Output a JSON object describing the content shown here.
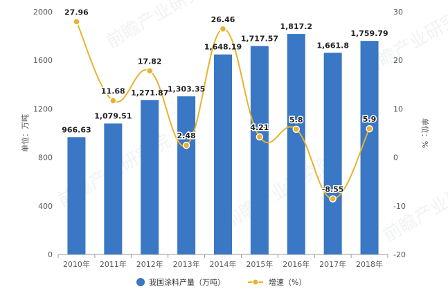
{
  "chart_data": {
    "type": "bar",
    "categories": [
      "2010年",
      "2011年",
      "2012年",
      "2013年",
      "2014年",
      "2015年",
      "2016年",
      "2017年",
      "2018年"
    ],
    "series": [
      {
        "name": "我国涂料产量（万吨）",
        "type": "bar",
        "axis": "left",
        "color": "#3a77c4",
        "values": [
          966.63,
          1079.51,
          1271.87,
          1303.35,
          1648.19,
          1717.57,
          1817.2,
          1661.8,
          1759.79
        ],
        "labels": [
          "966.63",
          "1,079.51",
          "1,271.87",
          "1,303.35",
          "1,648.19",
          "1,717.57",
          "1,817.2",
          "1,661.8",
          "1,759.79"
        ]
      },
      {
        "name": "增速（%）",
        "type": "line",
        "axis": "right",
        "smooth": true,
        "color": "#e8b32b",
        "values": [
          27.96,
          11.68,
          17.82,
          2.48,
          26.46,
          4.21,
          5.8,
          -8.55,
          5.9
        ],
        "labels": [
          "27.96",
          "11.68",
          "17.82",
          "2.48",
          "26.46",
          "4.21",
          "5.8",
          "-8.55",
          "5.9"
        ]
      }
    ],
    "ylabel": "单位：万吨",
    "ylabel_right": "单位：%",
    "ylim": [
      0,
      2000
    ],
    "yticks": [
      0,
      400,
      800,
      1200,
      1600,
      2000
    ],
    "ylim_right": [
      -20,
      30
    ],
    "yticks_right": [
      -20,
      -10,
      0,
      10,
      20,
      30
    ],
    "grid": false,
    "legend": "bottom",
    "watermark": "前瞻产业研究院"
  }
}
